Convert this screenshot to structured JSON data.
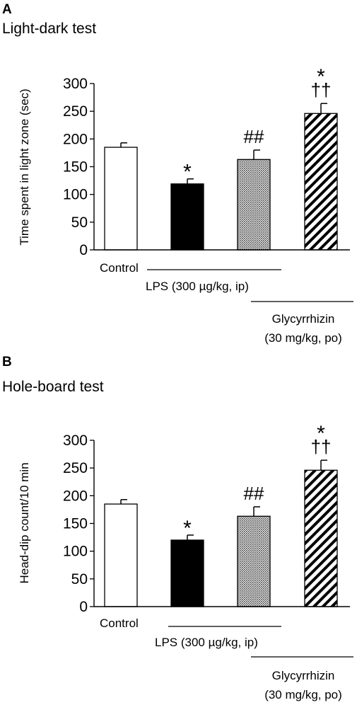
{
  "chart_data": [
    {
      "type": "bar",
      "panel": "A",
      "title": "Light-dark test",
      "ylabel": "Time spent in light zone (sec)",
      "xlabel": "",
      "ylim": [
        0,
        300
      ],
      "yticks": [
        "0",
        "50",
        "100",
        "150",
        "200",
        "250",
        "300"
      ],
      "grid": false,
      "categories": [
        "Control",
        "LPS",
        "LPS + Glycyrrhizin",
        "Glycyrrhizin"
      ],
      "values": [
        185,
        119,
        163,
        246
      ],
      "errors": [
        8,
        9,
        17,
        18
      ],
      "fills": [
        "white",
        "black",
        "dots",
        "hatch"
      ],
      "annotations": [
        [],
        [
          "*"
        ],
        [
          "##"
        ],
        [
          "*",
          "††"
        ]
      ],
      "group_labels": {
        "control": "Control",
        "lps": "LPS  (300 µg/kg, ip)",
        "glycyrrhizin_line1": "Glycyrrhizin",
        "glycyrrhizin_line2": "(30 mg/kg, po)"
      }
    },
    {
      "type": "bar",
      "panel": "B",
      "title": "Hole-board test",
      "ylabel": "Head-dip count/10 min",
      "xlabel": "",
      "ylim": [
        0,
        300
      ],
      "yticks": [
        "0",
        "50",
        "100",
        "150",
        "200",
        "250",
        "300"
      ],
      "grid": false,
      "categories": [
        "Control",
        "LPS",
        "LPS + Glycyrrhizin",
        "Glycyrrhizin"
      ],
      "values": [
        185,
        120,
        163,
        246
      ],
      "errors": [
        8,
        9,
        17,
        18
      ],
      "fills": [
        "white",
        "black",
        "dots",
        "hatch"
      ],
      "annotations": [
        [],
        [
          "*"
        ],
        [
          "##"
        ],
        [
          "*",
          "††"
        ]
      ],
      "group_labels": {
        "control": "Control",
        "lps": "LPS  (300 µg/kg, ip)",
        "glycyrrhizin_line1": "Glycyrrhizin",
        "glycyrrhizin_line2": "(30 mg/kg, po)"
      }
    }
  ]
}
